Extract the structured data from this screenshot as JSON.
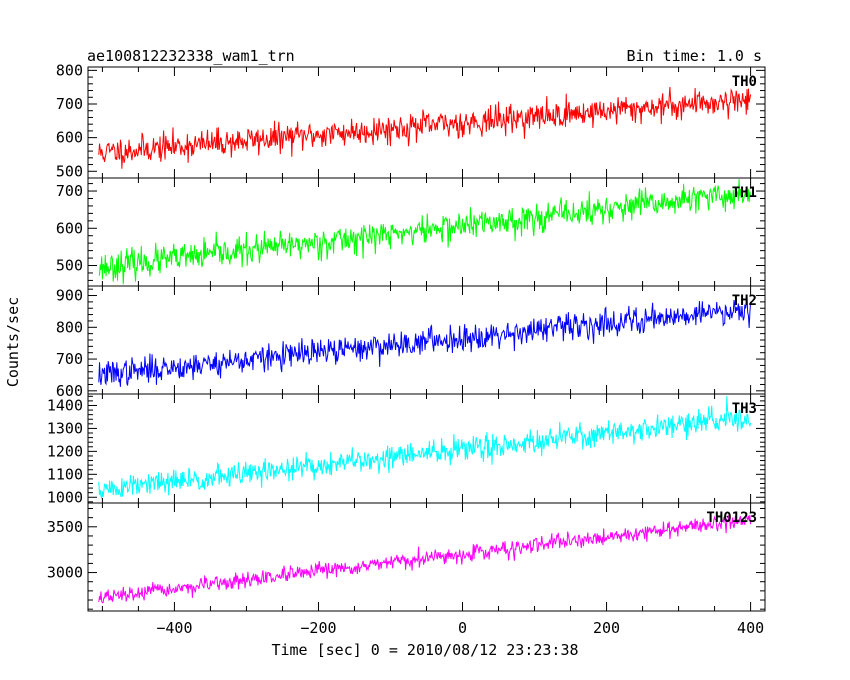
{
  "header": {
    "left_title": "ae100812232338_wam1_trn",
    "right_title": "Bin time: 1.0 s"
  },
  "chart_data": {
    "type": "line",
    "xlabel": "Time [sec] 0 = 2010/08/12 23:23:38",
    "ylabel": "Counts/sec",
    "xlim": [
      -520,
      420
    ],
    "x_ticks": [
      -400,
      -200,
      0,
      200,
      400
    ],
    "x_tick_labels": [
      "−400",
      "−200",
      "0",
      "200",
      "400"
    ],
    "x_sampling": {
      "start": -505,
      "end": 400,
      "step": 1
    },
    "grid": false,
    "panels": [
      {
        "label": "TH0",
        "color": "#ff0000",
        "ylim": [
          480,
          810
        ],
        "y_ticks": [
          500,
          600,
          700,
          800
        ],
        "trend": {
          "start": 555,
          "end": 715
        },
        "noise_amplitude": 28,
        "seed": 11
      },
      {
        "label": "TH1",
        "color": "#00ff00",
        "ylim": [
          445,
          735
        ],
        "y_ticks": [
          500,
          600,
          700
        ],
        "trend": {
          "start": 495,
          "end": 695
        },
        "noise_amplitude": 26,
        "seed": 23
      },
      {
        "label": "TH2",
        "color": "#0000ff",
        "ylim": [
          590,
          930
        ],
        "y_ticks": [
          600,
          700,
          800,
          900
        ],
        "trend": {
          "start": 650,
          "end": 860
        },
        "noise_amplitude": 28,
        "seed": 37
      },
      {
        "label": "TH3",
        "color": "#00ffff",
        "ylim": [
          975,
          1450
        ],
        "y_ticks": [
          1000,
          1100,
          1200,
          1300,
          1400
        ],
        "trend": {
          "start": 1030,
          "end": 1350
        },
        "noise_amplitude": 36,
        "seed": 51
      },
      {
        "label": "TH0123",
        "color": "#ff00ff",
        "ylim": [
          2580,
          3760
        ],
        "y_ticks": [
          3000,
          3500
        ],
        "trend": {
          "start": 2720,
          "end": 3580
        },
        "noise_amplitude": 55,
        "seed": 67
      }
    ]
  }
}
